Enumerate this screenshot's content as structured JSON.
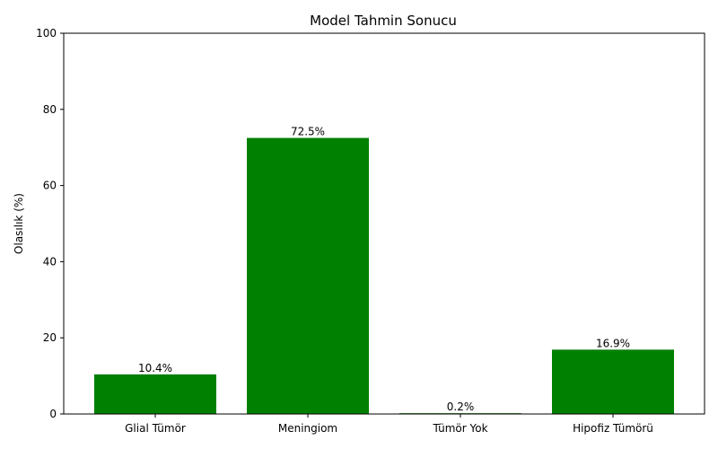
{
  "chart_data": {
    "type": "bar",
    "title": "Model Tahmin Sonucu",
    "xlabel": "",
    "ylabel": "Olasılık (%)",
    "categories": [
      "Glial Tümör",
      "Meningiom",
      "Tümör Yok",
      "Hipofiz Tümörü"
    ],
    "values": [
      10.4,
      72.5,
      0.2,
      16.9
    ],
    "data_labels": [
      "10.4%",
      "72.5%",
      "0.2%",
      "16.9%"
    ],
    "ylim": [
      0,
      100
    ],
    "yticks": [
      0,
      20,
      40,
      60,
      80,
      100
    ],
    "grid": false,
    "legend": "none",
    "colors": {
      "bar": "#008000",
      "axis": "#000000",
      "background": "#ffffff"
    }
  }
}
